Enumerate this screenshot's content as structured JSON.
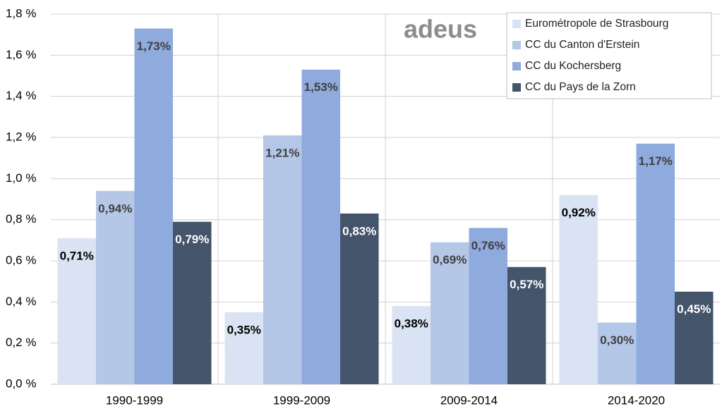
{
  "chart_data": {
    "type": "bar",
    "logo": "adeus",
    "categories": [
      "1990-1999",
      "1999-2009",
      "2009-2014",
      "2014-2020"
    ],
    "series": [
      {
        "name": "Eurométropole de Strasbourg",
        "color": "#dae3f3",
        "label_color": "#000000",
        "values": [
          0.71,
          0.35,
          0.38,
          0.92
        ],
        "value_labels": [
          "0,71%",
          "0,35%",
          "0,38%",
          "0,92%"
        ]
      },
      {
        "name": "CC du Canton d'Erstein",
        "color": "#b4c7e7",
        "label_color": "#404040",
        "values": [
          0.94,
          1.21,
          0.69,
          0.3
        ],
        "value_labels": [
          "0,94%",
          "1,21%",
          "0,69%",
          "0,30%"
        ]
      },
      {
        "name": "CC du Kochersberg",
        "color": "#8faadc",
        "label_color": "#404040",
        "values": [
          1.73,
          1.53,
          0.76,
          1.17
        ],
        "value_labels": [
          "1,73%",
          "1,53%",
          "0,76%",
          "1,17%"
        ]
      },
      {
        "name": "CC du Pays de la Zorn",
        "color": "#44546a",
        "label_color": "#ffffff",
        "values": [
          0.79,
          0.83,
          0.57,
          0.45
        ],
        "value_labels": [
          "0,79%",
          "0,83%",
          "0,57%",
          "0,45%"
        ]
      }
    ],
    "ylim": [
      0,
      1.8
    ],
    "yticks": [
      {
        "value": 0,
        "label": "0,0 %"
      },
      {
        "value": 0.2,
        "label": "0,2 %"
      },
      {
        "value": 0.4,
        "label": "0,4 %"
      },
      {
        "value": 0.6,
        "label": "0,6 %"
      },
      {
        "value": 0.8,
        "label": "0,8 %"
      },
      {
        "value": 1.0,
        "label": "1,0 %"
      },
      {
        "value": 1.2,
        "label": "1,2 %"
      },
      {
        "value": 1.4,
        "label": "1,4 %"
      },
      {
        "value": 1.6,
        "label": "1,6 %"
      },
      {
        "value": 1.8,
        "label": "1,8 %"
      }
    ],
    "grid": true,
    "legend": "top-right"
  }
}
